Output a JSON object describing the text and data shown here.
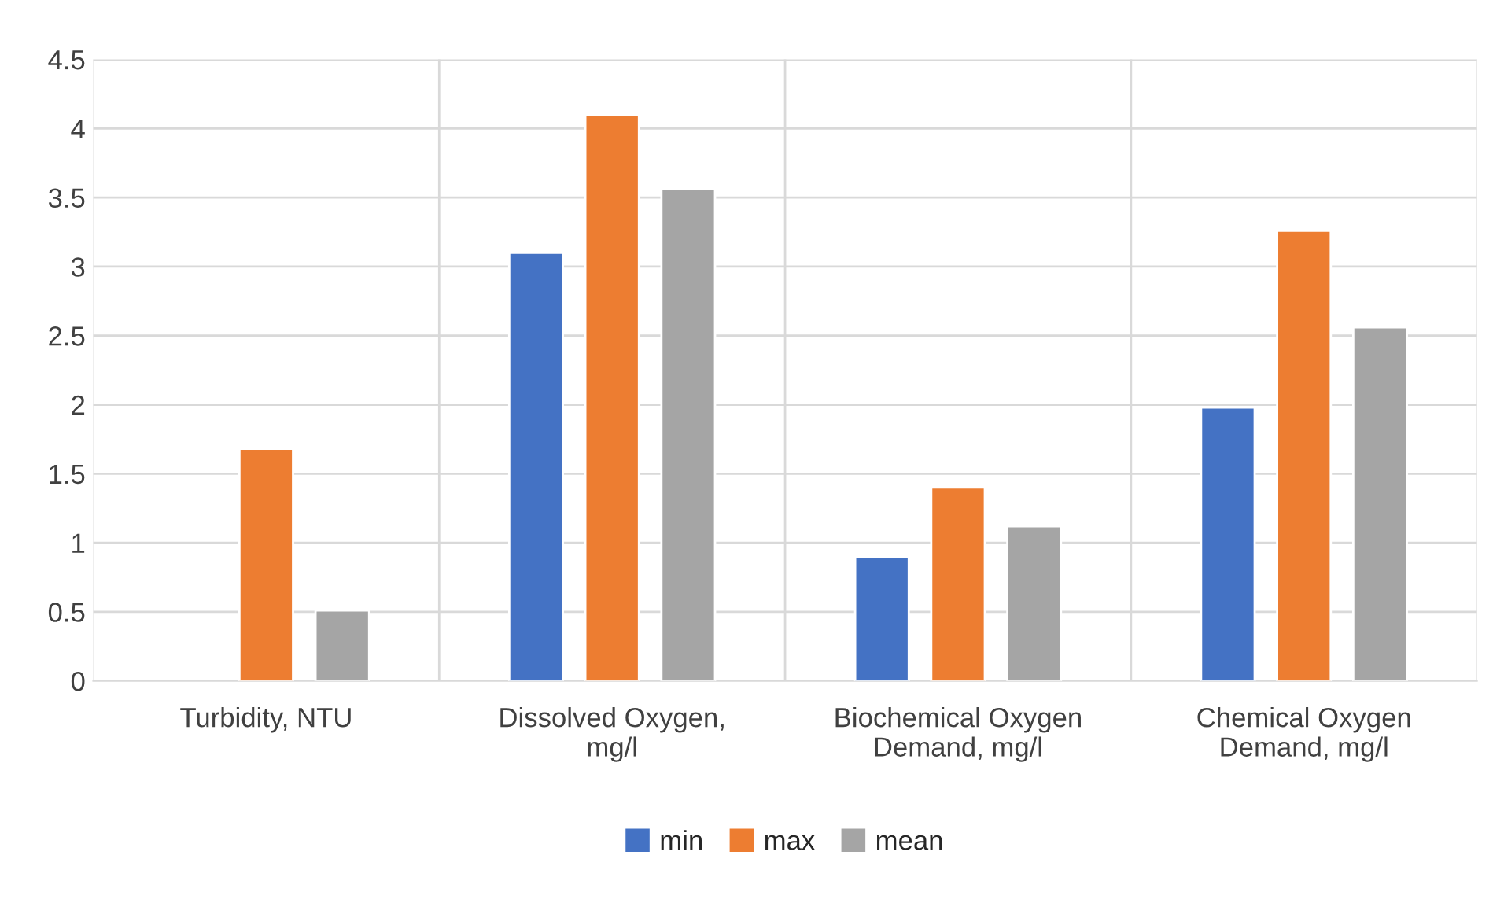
{
  "chart_data": {
    "type": "bar",
    "categories": [
      "Turbidity, NTU",
      "Dissolved Oxygen,\nmg/l",
      "Biochemical Oxygen\nDemand, mg/l",
      "Chemical Oxygen\nDemand, mg/l"
    ],
    "series": [
      {
        "name": "min",
        "color": "#4472c4",
        "values": [
          null,
          3.1,
          0.9,
          1.98
        ]
      },
      {
        "name": "max",
        "color": "#ed7d31",
        "values": [
          1.68,
          4.1,
          1.4,
          3.26
        ]
      },
      {
        "name": "mean",
        "color": "#a5a5a5",
        "values": [
          0.51,
          3.56,
          1.12,
          2.56
        ]
      }
    ],
    "ylim": [
      0,
      4.5
    ],
    "yticks": [
      0,
      0.5,
      1,
      1.5,
      2,
      2.5,
      3,
      3.5,
      4,
      4.5
    ],
    "grid": true,
    "legend": "bottom"
  }
}
